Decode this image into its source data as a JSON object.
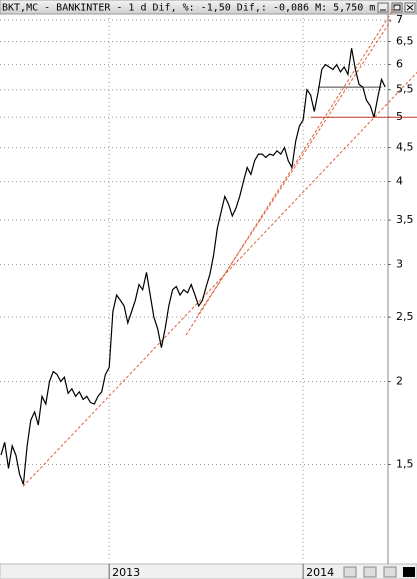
{
  "chart_data": {
    "type": "line",
    "title": "BKT,MC - BANKINTER -  1 d Dif, %: -1,50 Dif,: -0,086 M: 5,750 m",
    "categories": [
      null,
      null,
      null,
      null,
      null,
      null,
      null,
      null,
      null,
      null,
      null,
      null,
      null,
      null,
      null,
      null,
      null,
      null,
      null,
      null,
      null,
      null,
      null,
      null,
      null,
      null,
      null,
      null,
      null,
      "2013",
      null,
      null,
      null,
      null,
      null,
      null,
      null,
      null,
      null,
      null,
      null,
      null,
      null,
      null,
      null,
      null,
      null,
      null,
      null,
      null,
      null,
      null,
      null,
      null,
      null,
      null,
      null,
      null,
      null,
      null,
      null,
      null,
      null,
      null,
      null,
      null,
      null,
      null,
      null,
      null,
      null,
      null,
      null,
      null,
      null,
      null,
      null,
      null,
      null,
      null,
      null,
      "2014",
      null,
      null,
      null,
      null,
      null,
      null,
      null,
      null,
      null,
      null,
      null,
      null,
      null,
      null,
      null,
      null,
      null,
      null,
      null,
      null,
      null,
      null
    ],
    "values": [
      1.55,
      1.62,
      1.48,
      1.6,
      1.55,
      1.45,
      1.4,
      1.6,
      1.75,
      1.8,
      1.72,
      1.9,
      1.85,
      2.0,
      2.07,
      2.05,
      2.0,
      2.03,
      1.92,
      1.95,
      1.9,
      1.93,
      1.88,
      1.9,
      1.86,
      1.85,
      1.9,
      1.93,
      2.05,
      2.1,
      2.55,
      2.7,
      2.65,
      2.6,
      2.45,
      2.55,
      2.65,
      2.8,
      2.75,
      2.92,
      2.7,
      2.5,
      2.4,
      2.25,
      2.4,
      2.6,
      2.75,
      2.78,
      2.7,
      2.75,
      2.72,
      2.8,
      2.7,
      2.6,
      2.65,
      2.78,
      2.9,
      3.1,
      3.4,
      3.6,
      3.8,
      3.7,
      3.55,
      3.65,
      3.8,
      4.0,
      4.2,
      4.1,
      4.3,
      4.4,
      4.4,
      4.35,
      4.4,
      4.38,
      4.45,
      4.4,
      4.5,
      4.3,
      4.2,
      4.6,
      4.85,
      4.95,
      5.5,
      5.4,
      5.1,
      5.45,
      5.9,
      6.0,
      5.95,
      5.9,
      6.0,
      5.85,
      5.95,
      5.8,
      6.35,
      5.9,
      5.6,
      5.55,
      5.3,
      5.2,
      5.0,
      5.35,
      5.7,
      5.55
    ],
    "color": "#000000",
    "log_scale": true,
    "grid": true,
    "ylim": [
      1.07,
      7.15
    ],
    "yticks": [
      7,
      {
        "value": 6.5,
        "label": "6,5"
      },
      6,
      {
        "value": 5.5,
        "label": "5,5"
      },
      5,
      {
        "value": 4.5,
        "label": "4,5"
      },
      4,
      {
        "value": 3.5,
        "label": "3,5"
      },
      3,
      {
        "value": 2.5,
        "label": "2,5"
      },
      2,
      {
        "value": 1.5,
        "label": "1,5"
      }
    ],
    "trendlines": [
      {
        "color": "#e0603c",
        "from": [
          5.9,
          1.39
        ],
        "to": [
          111.8,
          5.86
        ]
      },
      {
        "color": "#e0603c",
        "from": [
          49.6,
          2.35
        ],
        "to": [
          105.9,
          7.37
        ]
      },
      {
        "color": "#e0603c",
        "from": [
          52.8,
          2.52
        ],
        "to": [
          104.6,
          7.0
        ]
      }
    ],
    "levels": [
      {
        "color": "#c0392b",
        "value": 5.0,
        "from": 83,
        "to": 111.8
      },
      {
        "color": "#404040",
        "value": 5.55,
        "from": 85,
        "to": 102
      }
    ]
  }
}
